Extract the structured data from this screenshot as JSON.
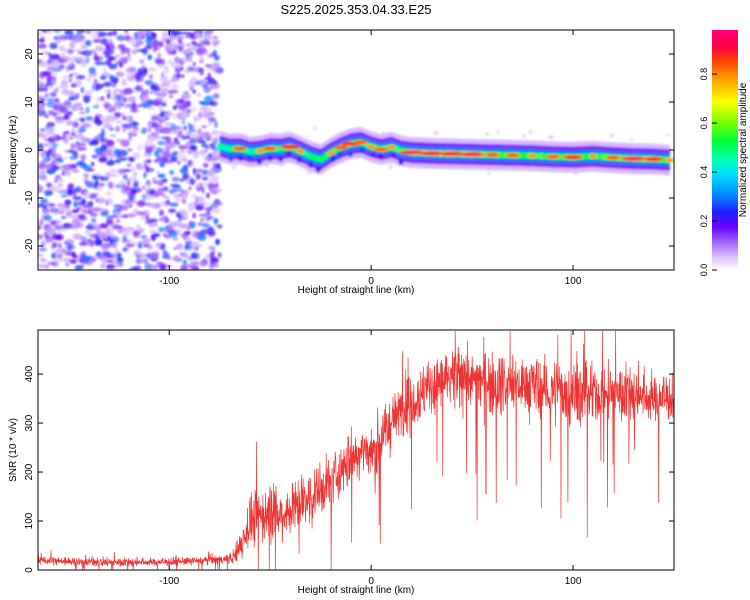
{
  "chart_data": [
    {
      "type": "heatmap",
      "title": "S225.2025.353.04.33.E25",
      "xlabel": "Height of straight line (km)",
      "ylabel": "Frequency (Hz)",
      "xlim": [
        -165,
        150
      ],
      "ylim": [
        -25,
        25
      ],
      "x_ticks": [
        -100,
        0,
        100
      ],
      "y_ticks": [
        20,
        10,
        0,
        -10,
        -20
      ],
      "noise_region_x": [
        -165,
        -75
      ],
      "signal_start_x": -75,
      "ridge": {
        "x": [
          -75,
          -70,
          -65,
          -60,
          -55,
          -50,
          -45,
          -40,
          -35,
          -30,
          -25,
          -20,
          -15,
          -10,
          -5,
          0,
          5,
          10,
          15,
          20,
          30,
          40,
          50,
          60,
          70,
          80,
          90,
          100,
          110,
          120,
          130,
          140,
          148
        ],
        "frequency": [
          0.8,
          0.2,
          0.3,
          -0.4,
          -0.2,
          0.3,
          0.2,
          0.6,
          -0.3,
          -1.3,
          -2.0,
          -0.6,
          0.5,
          1.3,
          1.6,
          0.7,
          0.1,
          0.6,
          -0.2,
          -0.5,
          -0.7,
          -0.8,
          -0.9,
          -1.0,
          -1.1,
          -1.2,
          -1.4,
          -1.5,
          -1.3,
          -1.6,
          -1.8,
          -1.9,
          -2.1
        ],
        "peak_amplitude": [
          0.6,
          0.75,
          0.85,
          0.7,
          0.8,
          0.85,
          0.7,
          0.9,
          0.8,
          0.7,
          0.75,
          0.8,
          0.85,
          0.9,
          0.85,
          0.8,
          0.85,
          0.8,
          0.75,
          0.95,
          0.95,
          0.95,
          0.95,
          0.85,
          0.85,
          0.8,
          0.85,
          0.9,
          0.8,
          0.85,
          0.95,
          0.9,
          0.8
        ]
      },
      "colorbar": {
        "label": "Normalized spectral amplitude",
        "ticks": [
          "0.0",
          "0.2",
          "0.4",
          "0.6",
          "0.8"
        ],
        "range": [
          0,
          0.98
        ]
      }
    },
    {
      "type": "line",
      "xlabel": "Height of straight line (km)",
      "ylabel": "SNR (10 * v/v)",
      "xlim": [
        -165,
        150
      ],
      "ylim": [
        0,
        490
      ],
      "x_ticks": [
        -100,
        0,
        100
      ],
      "y_ticks": [
        0,
        100,
        200,
        300,
        400
      ],
      "color": "#ee3333",
      "series": [
        {
          "name": "SNR",
          "x": [
            -165,
            -150,
            -130,
            -110,
            -90,
            -80,
            -72,
            -68,
            -65,
            -62,
            -60,
            -55,
            -50,
            -45,
            -40,
            -35,
            -30,
            -25,
            -20,
            -15,
            -10,
            -5,
            0,
            5,
            10,
            15,
            20,
            25,
            30,
            40,
            50,
            60,
            70,
            80,
            90,
            100,
            110,
            120,
            130,
            140,
            150
          ],
          "mean": [
            20,
            18,
            16,
            16,
            18,
            20,
            22,
            25,
            50,
            80,
            100,
            110,
            120,
            110,
            125,
            140,
            150,
            160,
            180,
            200,
            230,
            245,
            240,
            270,
            300,
            330,
            350,
            360,
            380,
            385,
            390,
            385,
            380,
            375,
            365,
            360,
            355,
            365,
            360,
            350,
            355
          ],
          "spread": [
            10,
            10,
            10,
            10,
            10,
            10,
            10,
            20,
            40,
            55,
            60,
            60,
            70,
            60,
            55,
            60,
            60,
            60,
            60,
            60,
            65,
            60,
            55,
            60,
            60,
            65,
            65,
            65,
            65,
            70,
            70,
            70,
            70,
            70,
            70,
            70,
            65,
            65,
            65,
            65,
            60
          ]
        }
      ]
    }
  ]
}
